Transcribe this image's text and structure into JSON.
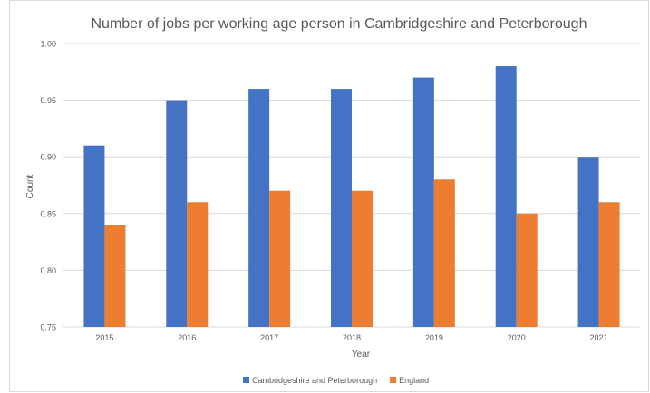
{
  "chart_data": {
    "type": "bar",
    "title": "Number of jobs per working age person in Cambridgeshire and Peterborough",
    "xlabel": "Year",
    "ylabel": "Count",
    "ylim": [
      0.75,
      1.0
    ],
    "yticks": [
      "0.75",
      "0.80",
      "0.85",
      "0.90",
      "0.95",
      "1.00"
    ],
    "categories": [
      "2015",
      "2016",
      "2017",
      "2018",
      "2019",
      "2020",
      "2021"
    ],
    "series": [
      {
        "name": "Cambridgeshire and Peterborough",
        "color": "#4472C4",
        "values": [
          0.91,
          0.95,
          0.96,
          0.96,
          0.97,
          0.98,
          0.9
        ]
      },
      {
        "name": "England",
        "color": "#ED7D31",
        "values": [
          0.84,
          0.86,
          0.87,
          0.87,
          0.88,
          0.85,
          0.86
        ]
      }
    ],
    "grid": true,
    "legend_position": "bottom"
  }
}
